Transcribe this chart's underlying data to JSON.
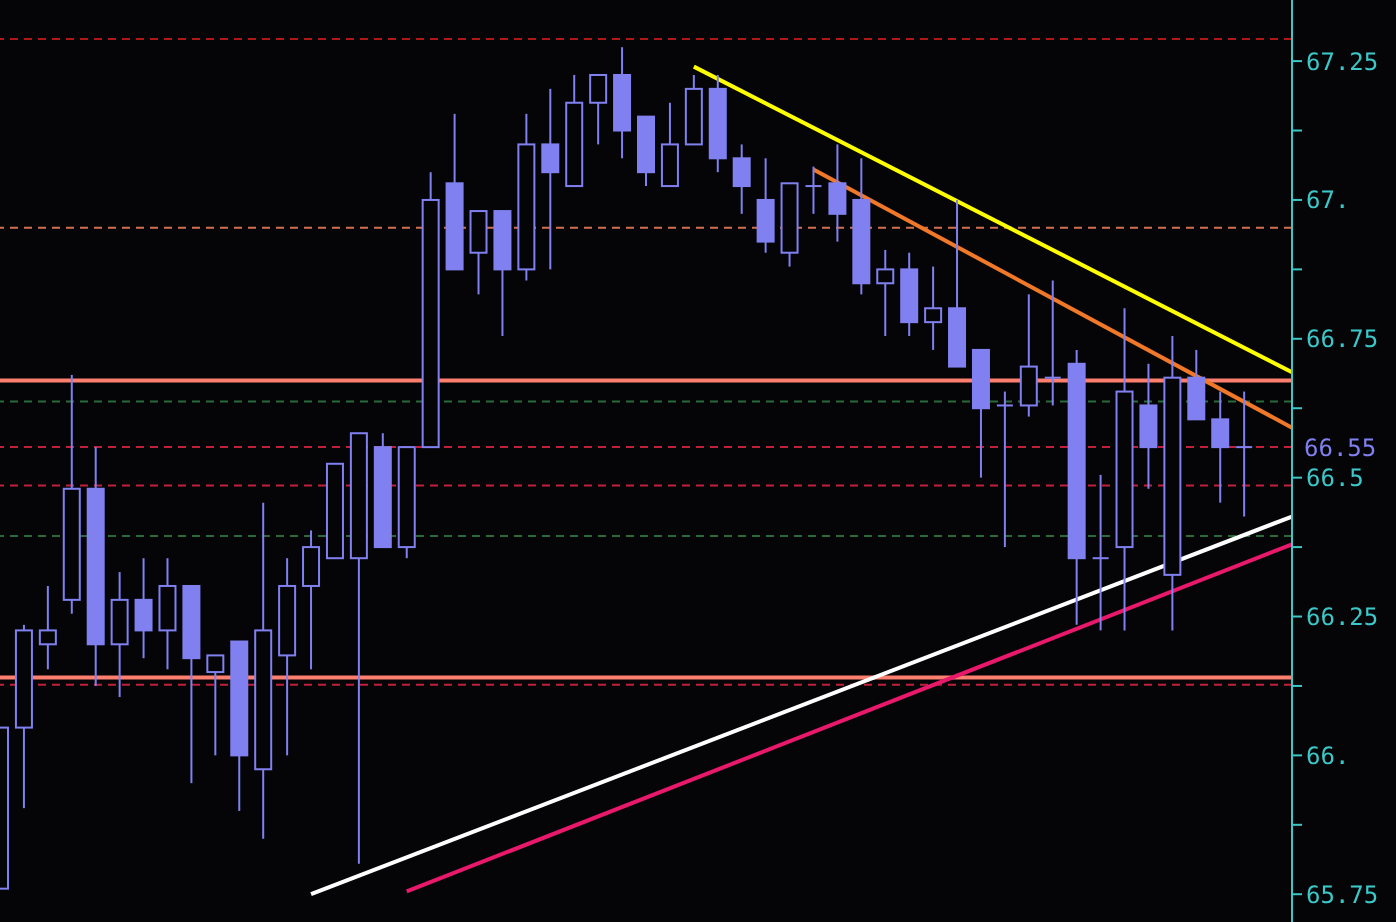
{
  "chart_data": {
    "type": "candlestick",
    "color": "#8080f0",
    "tick_labels": "y",
    "categories": [
      null,
      null,
      null,
      null,
      null,
      null,
      null,
      null,
      null,
      null,
      null,
      null,
      null,
      null,
      null,
      null,
      null,
      null,
      null,
      null,
      null,
      null,
      null,
      null,
      null,
      null,
      null,
      null,
      null,
      null,
      null,
      null,
      null,
      null,
      null,
      null,
      null,
      null,
      null,
      null,
      null,
      null,
      null,
      null,
      null,
      null,
      null,
      null,
      null,
      null,
      null,
      null,
      null,
      null,
      null
    ],
    "ohlc": [
      [
        65.76,
        66.05,
        65.76,
        66.05
      ],
      [
        66.05,
        66.235,
        65.905,
        66.225
      ],
      [
        66.2,
        66.305,
        66.155,
        66.225
      ],
      [
        66.28,
        66.685,
        66.255,
        66.48
      ],
      [
        66.48,
        66.555,
        66.125,
        66.2
      ],
      [
        66.2,
        66.33,
        66.105,
        66.28
      ],
      [
        66.28,
        66.355,
        66.175,
        66.225
      ],
      [
        66.225,
        66.355,
        66.155,
        66.305
      ],
      [
        66.305,
        66.305,
        65.95,
        66.175
      ],
      [
        66.15,
        66.18,
        66.0,
        66.18
      ],
      [
        66.205,
        66.205,
        65.9,
        66.0
      ],
      [
        65.975,
        66.455,
        65.85,
        66.225
      ],
      [
        66.18,
        66.355,
        66.0,
        66.305
      ],
      [
        66.305,
        66.405,
        66.155,
        66.375
      ],
      [
        66.355,
        66.525,
        66.355,
        66.525
      ],
      [
        66.355,
        66.58,
        65.805,
        66.58
      ],
      [
        66.555,
        66.58,
        66.375,
        66.375
      ],
      [
        66.375,
        66.555,
        66.355,
        66.555
      ],
      [
        66.555,
        67.05,
        66.555,
        67.0
      ],
      [
        67.03,
        67.155,
        66.875,
        66.875
      ],
      [
        66.905,
        66.98,
        66.83,
        66.98
      ],
      [
        66.98,
        66.98,
        66.755,
        66.875
      ],
      [
        66.875,
        67.155,
        66.855,
        67.1
      ],
      [
        67.1,
        67.2,
        66.875,
        67.05
      ],
      [
        67.025,
        67.225,
        67.025,
        67.175
      ],
      [
        67.175,
        67.225,
        67.1,
        67.225
      ],
      [
        67.225,
        67.275,
        67.075,
        67.125
      ],
      [
        67.15,
        67.15,
        67.025,
        67.05
      ],
      [
        67.025,
        67.175,
        67.025,
        67.1
      ],
      [
        67.1,
        67.225,
        67.1,
        67.2
      ],
      [
        67.2,
        67.225,
        67.05,
        67.075
      ],
      [
        67.075,
        67.1,
        66.975,
        67.025
      ],
      [
        67.0,
        67.075,
        66.905,
        66.925
      ],
      [
        66.905,
        67.03,
        66.88,
        67.03
      ],
      [
        67.025,
        67.06,
        66.975,
        67.025
      ],
      [
        67.03,
        67.1,
        66.925,
        66.975
      ],
      [
        67.0,
        67.075,
        66.83,
        66.85
      ],
      [
        66.85,
        66.91,
        66.755,
        66.875
      ],
      [
        66.875,
        66.905,
        66.755,
        66.78
      ],
      [
        66.78,
        66.88,
        66.73,
        66.805
      ],
      [
        66.805,
        67.0,
        66.7,
        66.7
      ],
      [
        66.73,
        66.73,
        66.5,
        66.625
      ],
      [
        66.63,
        66.655,
        66.375,
        66.63
      ],
      [
        66.63,
        66.83,
        66.61,
        66.7
      ],
      [
        66.68,
        66.855,
        66.63,
        66.68
      ],
      [
        66.705,
        66.73,
        66.235,
        66.355
      ],
      [
        66.355,
        66.505,
        66.225,
        66.355
      ],
      [
        66.375,
        66.805,
        66.225,
        66.655
      ],
      [
        66.63,
        66.705,
        66.48,
        66.555
      ],
      [
        66.325,
        66.755,
        66.225,
        66.68
      ],
      [
        66.68,
        66.73,
        66.605,
        66.605
      ],
      [
        66.605,
        66.655,
        66.455,
        66.555
      ],
      [
        66.555,
        66.655,
        66.43,
        66.555
      ],
      null,
      null
    ],
    "series": [
      {
        "type": "line",
        "color": "#ffff00",
        "values": [
          null,
          null,
          null,
          null,
          null,
          null,
          null,
          null,
          null,
          null,
          null,
          null,
          null,
          null,
          null,
          null,
          null,
          null,
          null,
          null,
          null,
          null,
          null,
          null,
          null,
          null,
          null,
          null,
          null,
          67.24,
          null,
          null,
          null,
          null,
          null,
          null,
          null,
          null,
          null,
          null,
          null,
          null,
          null,
          null,
          null,
          null,
          null,
          null,
          null,
          null,
          null,
          null,
          null,
          null,
          66.69
        ]
      },
      {
        "type": "line",
        "color": "#f07828",
        "values": [
          null,
          null,
          null,
          null,
          null,
          null,
          null,
          null,
          null,
          null,
          null,
          null,
          null,
          null,
          null,
          null,
          null,
          null,
          null,
          null,
          null,
          null,
          null,
          null,
          null,
          null,
          null,
          null,
          null,
          null,
          null,
          null,
          null,
          null,
          67.055,
          null,
          null,
          null,
          null,
          null,
          null,
          null,
          null,
          null,
          null,
          null,
          null,
          null,
          null,
          null,
          null,
          null,
          null,
          null,
          66.59
        ]
      },
      {
        "type": "line",
        "color": "#ffffff",
        "values": [
          null,
          null,
          null,
          null,
          null,
          null,
          null,
          null,
          null,
          null,
          null,
          null,
          null,
          65.75,
          null,
          null,
          null,
          null,
          null,
          null,
          null,
          null,
          null,
          null,
          null,
          null,
          null,
          null,
          null,
          null,
          null,
          null,
          null,
          null,
          null,
          null,
          null,
          null,
          null,
          null,
          null,
          null,
          null,
          null,
          null,
          null,
          null,
          null,
          null,
          null,
          null,
          null,
          null,
          null,
          66.43
        ]
      },
      {
        "type": "line",
        "color": "#e8186a",
        "values": [
          null,
          null,
          null,
          null,
          null,
          null,
          null,
          null,
          null,
          null,
          null,
          null,
          null,
          null,
          null,
          null,
          null,
          65.755,
          null,
          null,
          null,
          null,
          null,
          null,
          null,
          null,
          null,
          null,
          null,
          null,
          null,
          null,
          null,
          null,
          null,
          null,
          null,
          null,
          null,
          null,
          null,
          null,
          null,
          null,
          null,
          null,
          null,
          null,
          null,
          null,
          null,
          null,
          null,
          null,
          66.38
        ]
      }
    ],
    "ylim": [
      65.7,
      67.36
    ],
    "yticks": [
      {
        "value": 65.75,
        "label": "65.75"
      },
      {
        "value": 65.875,
        "label": null
      },
      {
        "value": 66,
        "label": "66."
      },
      {
        "value": 66.125,
        "label": null
      },
      66.25,
      {
        "value": 66.375,
        "label": null
      },
      66.5,
      {
        "value": 66.625,
        "label": null
      },
      66.75,
      {
        "value": 66.875,
        "label": null
      },
      {
        "value": 67,
        "label": "67."
      },
      {
        "value": 67.125,
        "label": null
      },
      67.25
    ],
    "ref_lines": [
      {
        "axis": "y",
        "value": 67.29,
        "color": "#b01818",
        "line_style": "dashed"
      },
      {
        "axis": "y",
        "value": 66.95,
        "color": "#d07050",
        "line_style": "dashed"
      },
      {
        "axis": "y",
        "value": 66.675,
        "color": "#ff7f6f",
        "line_style": "solid"
      },
      {
        "axis": "y",
        "value": 66.637,
        "color": "#2a6a3a",
        "line_style": "dashed"
      },
      {
        "axis": "y",
        "value": 66.555,
        "color": "#c0203a",
        "line_style": "dashed",
        "label": "66.55"
      },
      {
        "axis": "y",
        "value": 66.486,
        "color": "#c0203a",
        "line_style": "dashed"
      },
      {
        "axis": "y",
        "value": 66.395,
        "color": "#2a6a3a",
        "line_style": "dashed"
      },
      {
        "axis": "y",
        "value": 66.14,
        "color": "#ff7f6f",
        "line_style": "solid"
      },
      {
        "axis": "y",
        "value": 66.127,
        "color": "#c0203a",
        "line_style": "dashed"
      }
    ]
  }
}
